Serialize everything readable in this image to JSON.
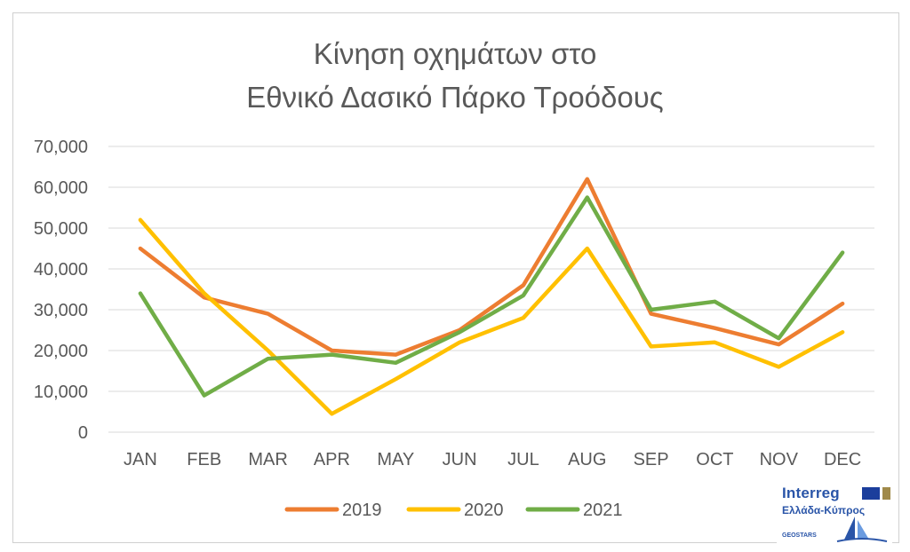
{
  "chart_data": {
    "type": "line",
    "title": [
      "Κίνηση οχημάτων στο",
      "Εθνικό Δασικό Πάρκο Τροόδους"
    ],
    "categories": [
      "JAN",
      "FEB",
      "MAR",
      "APR",
      "MAY",
      "JUN",
      "JUL",
      "AUG",
      "SEP",
      "OCT",
      "NOV",
      "DEC"
    ],
    "y_ticks": [
      "0",
      "10,000",
      "20,000",
      "30,000",
      "40,000",
      "50,000",
      "60,000",
      "70,000"
    ],
    "ylim": [
      0,
      70000
    ],
    "grid": true,
    "legend_position": "bottom",
    "series": [
      {
        "name": "2019",
        "color": "#ED7D31",
        "values": [
          45000,
          33000,
          29000,
          20000,
          19000,
          25000,
          36000,
          62000,
          29000,
          25500,
          21500,
          31500
        ]
      },
      {
        "name": "2020",
        "color": "#FFC000",
        "values": [
          52000,
          34000,
          20000,
          4500,
          13000,
          22000,
          28000,
          45000,
          21000,
          22000,
          16000,
          24500
        ]
      },
      {
        "name": "2021",
        "color": "#70AD47",
        "values": [
          34000,
          9000,
          18000,
          19000,
          17000,
          24500,
          33500,
          57500,
          30000,
          32000,
          23000,
          44000
        ]
      }
    ]
  },
  "logo": {
    "brand": "Interreg",
    "region": "Ελλάδα-Κύπρος",
    "project": "GEOSTARS",
    "icon": "interreg-logo"
  }
}
